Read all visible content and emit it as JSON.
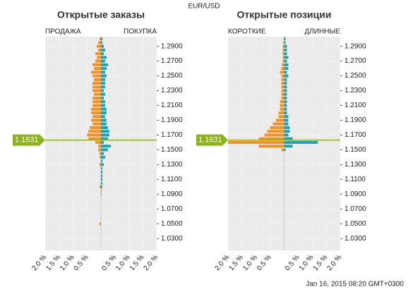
{
  "title": "EUR/USD",
  "timestamp": "Jan 16, 2015 08:20 GMT+0300",
  "chart_data": [
    {
      "type": "bar",
      "orientation": "horizontal",
      "title": "Открытые заказы",
      "left_label": "ПРОДАЖА",
      "right_label": "ПОКУПКА",
      "y": [
        1.3,
        1.295,
        1.29,
        1.285,
        1.28,
        1.275,
        1.27,
        1.265,
        1.26,
        1.255,
        1.25,
        1.245,
        1.24,
        1.235,
        1.23,
        1.225,
        1.22,
        1.215,
        1.21,
        1.205,
        1.2,
        1.195,
        1.19,
        1.185,
        1.18,
        1.175,
        1.17,
        1.165,
        1.16,
        1.155,
        1.15,
        1.145,
        1.14,
        1.135,
        1.13,
        1.125,
        1.12,
        1.115,
        1.11,
        1.105,
        1.1,
        1.095,
        1.09,
        1.085,
        1.08,
        1.075,
        1.07,
        1.065,
        1.06,
        1.055,
        1.05,
        1.045,
        1.04
      ],
      "series": [
        {
          "side": "left",
          "color": "#f7901e",
          "values": [
            0.05,
            0.1,
            0.15,
            0.1,
            0.2,
            0.15,
            0.2,
            0.3,
            0.25,
            0.35,
            0.3,
            0.25,
            0.3,
            0.3,
            0.3,
            0.25,
            0.3,
            0.3,
            0.3,
            0.35,
            0.35,
            0.3,
            0.35,
            0.3,
            0.4,
            0.45,
            0.5,
            0.45,
            0.2,
            0.1,
            0.1,
            0.05,
            0.05,
            0,
            0.05,
            0,
            0,
            0,
            0,
            0,
            0.05,
            0,
            0,
            0,
            0,
            0,
            0,
            0,
            0,
            0,
            0.05,
            0,
            0
          ]
        },
        {
          "side": "right",
          "color": "#1aa3b5",
          "values": [
            0.05,
            0.05,
            0.1,
            0.15,
            0.1,
            0.2,
            0.15,
            0.25,
            0.2,
            0.15,
            0.2,
            0.15,
            0.15,
            0.15,
            0.1,
            0.15,
            0.1,
            0.15,
            0.15,
            0.2,
            0.2,
            0.15,
            0.2,
            0.2,
            0.25,
            0.3,
            0.3,
            0.25,
            0.1,
            0.35,
            0.25,
            0.1,
            0.15,
            0.05,
            0.1,
            0.05,
            0.05,
            0.05,
            0.05,
            0.05,
            0.05,
            0.02,
            0.02,
            0,
            0,
            0,
            0,
            0,
            0,
            0,
            0,
            0,
            0
          ]
        }
      ],
      "xlim": [
        -2,
        2
      ],
      "ylim": [
        1.014,
        1.303
      ]
    },
    {
      "type": "bar",
      "orientation": "horizontal",
      "title": "Открытые позиции",
      "left_label": "КОРОТКИЕ",
      "right_label": "ДЛИННЫЕ",
      "y": [
        1.3,
        1.295,
        1.29,
        1.285,
        1.28,
        1.275,
        1.27,
        1.265,
        1.26,
        1.255,
        1.25,
        1.245,
        1.24,
        1.235,
        1.23,
        1.225,
        1.22,
        1.215,
        1.21,
        1.205,
        1.2,
        1.195,
        1.19,
        1.185,
        1.18,
        1.175,
        1.17,
        1.165,
        1.16,
        1.155,
        1.15,
        1.145,
        1.14,
        1.135,
        1.13,
        1.125,
        1.12,
        1.115,
        1.11,
        1.105,
        1.1,
        1.095,
        1.09,
        1.085,
        1.08,
        1.075,
        1.07,
        1.065,
        1.06,
        1.055,
        1.05,
        1.045,
        1.04
      ],
      "series": [
        {
          "side": "left",
          "color": "#f7901e",
          "values": [
            0.02,
            0.03,
            0.05,
            0.05,
            0.05,
            0.05,
            0.05,
            0.08,
            0.1,
            0.15,
            0.1,
            0.1,
            0.1,
            0.1,
            0.1,
            0.1,
            0.1,
            0.15,
            0.15,
            0.15,
            0.2,
            0.2,
            0.3,
            0.4,
            0.5,
            0.6,
            0.7,
            0.9,
            2.0,
            0.9,
            0.1,
            0,
            0,
            0,
            0,
            0,
            0,
            0,
            0,
            0,
            0,
            0,
            0,
            0,
            0,
            0,
            0,
            0,
            0,
            0,
            0,
            0,
            0
          ]
        },
        {
          "side": "right",
          "color": "#1aa3b5",
          "values": [
            0.05,
            0.05,
            0.1,
            0.1,
            0.1,
            0.15,
            0.1,
            0.15,
            0.15,
            0.1,
            0.15,
            0.1,
            0.1,
            0.1,
            0.1,
            0.1,
            0.1,
            0.1,
            0.1,
            0.1,
            0.1,
            0.15,
            0.15,
            0.15,
            0.2,
            0.2,
            0.15,
            0.3,
            1.2,
            0.3,
            0.05,
            0,
            0,
            0,
            0,
            0,
            0,
            0,
            0,
            0,
            0,
            0,
            0,
            0,
            0,
            0,
            0,
            0,
            0,
            0,
            0,
            0,
            0
          ]
        }
      ],
      "xlim": [
        -2,
        2
      ],
      "ylim": [
        1.014,
        1.303
      ]
    }
  ],
  "xticks": [
    {
      "value": -2,
      "label": "2.0 %"
    },
    {
      "value": -1.5,
      "label": "1.5 %"
    },
    {
      "value": -1,
      "label": "1.0 %"
    },
    {
      "value": -0.5,
      "label": "0.5 %"
    },
    {
      "value": 0.5,
      "label": "0.5 %"
    },
    {
      "value": 1,
      "label": "1.0 %"
    },
    {
      "value": 1.5,
      "label": "1.5 %"
    },
    {
      "value": 2,
      "label": "2.0 %"
    }
  ],
  "yticks": [
    {
      "value": 1.29,
      "label": "1.2900"
    },
    {
      "value": 1.27,
      "label": "1.2700"
    },
    {
      "value": 1.25,
      "label": "1.2500"
    },
    {
      "value": 1.23,
      "label": "1.2300"
    },
    {
      "value": 1.21,
      "label": "1.2100"
    },
    {
      "value": 1.19,
      "label": "1.1900"
    },
    {
      "value": 1.17,
      "label": "1.1700"
    },
    {
      "value": 1.15,
      "label": "1.1500"
    },
    {
      "value": 1.13,
      "label": "1.1300"
    },
    {
      "value": 1.11,
      "label": "1.1100"
    },
    {
      "value": 1.09,
      "label": "1.0900"
    },
    {
      "value": 1.07,
      "label": "1.0700"
    },
    {
      "value": 1.05,
      "label": "1.0500"
    },
    {
      "value": 1.03,
      "label": "1.0300"
    }
  ],
  "current_price": {
    "value": 1.1631,
    "label": "1.1631"
  }
}
